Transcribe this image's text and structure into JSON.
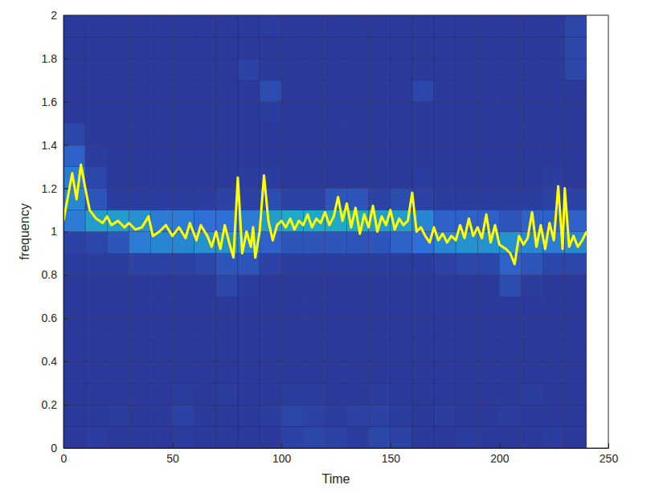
{
  "chart_data": {
    "type": "heatmap",
    "x_label": "Time",
    "y_label": "frequency",
    "xlim": [
      0,
      250
    ],
    "ylim": [
      0,
      2
    ],
    "xticks": [
      0,
      50,
      100,
      150,
      200,
      250
    ],
    "yticks": [
      0,
      0.2,
      0.4,
      0.6,
      0.8,
      1,
      1.2,
      1.4,
      1.6,
      1.8,
      2
    ],
    "grid": false,
    "heatmap": {
      "x_edges": [
        0,
        10,
        20,
        30,
        40,
        50,
        60,
        70,
        80,
        90,
        100,
        110,
        120,
        130,
        140,
        150,
        160,
        170,
        180,
        190,
        200,
        210,
        220,
        230,
        240
      ],
      "y_edges": [
        0,
        0.1,
        0.2,
        0.3,
        0.4,
        0.5,
        0.6,
        0.7,
        0.8,
        0.9,
        1,
        1.1,
        1.2,
        1.3,
        1.4,
        1.5,
        1.6,
        1.7,
        1.8,
        1.9,
        2
      ],
      "color_range": [
        0,
        1
      ],
      "values": [
        [
          0.05,
          0.06,
          0.05,
          0.05,
          0.05,
          0.06,
          0.05,
          0.05,
          0.05,
          0.05,
          0.08,
          0.1,
          0.08,
          0.06,
          0.1,
          0.08,
          0.05,
          0.05,
          0.06,
          0.05,
          0.05,
          0.05,
          0.06,
          0.05
        ],
        [
          0.05,
          0.05,
          0.06,
          0.05,
          0.05,
          0.08,
          0.05,
          0.05,
          0.05,
          0.06,
          0.1,
          0.08,
          0.06,
          0.08,
          0.08,
          0.06,
          0.05,
          0.06,
          0.05,
          0.05,
          0.06,
          0.05,
          0.05,
          0.05
        ],
        [
          0.05,
          0.05,
          0.05,
          0.05,
          0.05,
          0.06,
          0.05,
          0.06,
          0.05,
          0.05,
          0.06,
          0.06,
          0.05,
          0.05,
          0.06,
          0.05,
          0.05,
          0.05,
          0.05,
          0.05,
          0.05,
          0.06,
          0.05,
          0.05
        ],
        [
          0.05,
          0.05,
          0.05,
          0.05,
          0.05,
          0.05,
          0.05,
          0.05,
          0.05,
          0.05,
          0.05,
          0.05,
          0.05,
          0.05,
          0.05,
          0.05,
          0.05,
          0.05,
          0.05,
          0.05,
          0.05,
          0.05,
          0.05,
          0.05
        ],
        [
          0.05,
          0.05,
          0.05,
          0.05,
          0.05,
          0.05,
          0.05,
          0.05,
          0.05,
          0.05,
          0.05,
          0.05,
          0.05,
          0.05,
          0.05,
          0.05,
          0.05,
          0.05,
          0.05,
          0.05,
          0.05,
          0.05,
          0.05,
          0.05
        ],
        [
          0.05,
          0.05,
          0.05,
          0.05,
          0.05,
          0.05,
          0.05,
          0.05,
          0.05,
          0.05,
          0.05,
          0.05,
          0.05,
          0.05,
          0.05,
          0.05,
          0.05,
          0.05,
          0.05,
          0.05,
          0.05,
          0.05,
          0.05,
          0.05
        ],
        [
          0.05,
          0.05,
          0.05,
          0.05,
          0.05,
          0.05,
          0.05,
          0.05,
          0.05,
          0.05,
          0.05,
          0.05,
          0.05,
          0.05,
          0.05,
          0.05,
          0.05,
          0.05,
          0.05,
          0.05,
          0.05,
          0.05,
          0.05,
          0.05
        ],
        [
          0.05,
          0.05,
          0.05,
          0.05,
          0.05,
          0.05,
          0.05,
          0.1,
          0.06,
          0.05,
          0.05,
          0.05,
          0.05,
          0.05,
          0.05,
          0.05,
          0.05,
          0.05,
          0.05,
          0.05,
          0.12,
          0.06,
          0.05,
          0.05
        ],
        [
          0.06,
          0.06,
          0.06,
          0.08,
          0.08,
          0.08,
          0.1,
          0.15,
          0.15,
          0.08,
          0.06,
          0.06,
          0.06,
          0.06,
          0.06,
          0.06,
          0.06,
          0.08,
          0.1,
          0.1,
          0.2,
          0.15,
          0.1,
          0.1
        ],
        [
          0.08,
          0.1,
          0.15,
          0.3,
          0.35,
          0.35,
          0.4,
          0.4,
          0.35,
          0.2,
          0.15,
          0.15,
          0.15,
          0.15,
          0.15,
          0.2,
          0.25,
          0.35,
          0.4,
          0.4,
          0.4,
          0.35,
          0.3,
          0.35
        ],
        [
          0.3,
          0.45,
          0.45,
          0.4,
          0.3,
          0.3,
          0.25,
          0.25,
          0.3,
          0.45,
          0.5,
          0.5,
          0.5,
          0.5,
          0.45,
          0.45,
          0.35,
          0.2,
          0.2,
          0.2,
          0.15,
          0.2,
          0.2,
          0.2
        ],
        [
          0.35,
          0.15,
          0.06,
          0.06,
          0.06,
          0.06,
          0.06,
          0.08,
          0.08,
          0.12,
          0.08,
          0.08,
          0.15,
          0.15,
          0.08,
          0.12,
          0.08,
          0.06,
          0.06,
          0.06,
          0.06,
          0.06,
          0.08,
          0.08
        ],
        [
          0.3,
          0.1,
          0.05,
          0.05,
          0.05,
          0.05,
          0.05,
          0.05,
          0.06,
          0.06,
          0.05,
          0.05,
          0.05,
          0.05,
          0.05,
          0.05,
          0.06,
          0.05,
          0.05,
          0.05,
          0.05,
          0.05,
          0.06,
          0.05
        ],
        [
          0.2,
          0.06,
          0.05,
          0.05,
          0.05,
          0.05,
          0.05,
          0.05,
          0.05,
          0.05,
          0.05,
          0.05,
          0.05,
          0.05,
          0.05,
          0.05,
          0.05,
          0.05,
          0.05,
          0.05,
          0.05,
          0.05,
          0.05,
          0.05
        ],
        [
          0.1,
          0.05,
          0.05,
          0.05,
          0.05,
          0.05,
          0.05,
          0.05,
          0.05,
          0.05,
          0.05,
          0.05,
          0.05,
          0.05,
          0.05,
          0.05,
          0.05,
          0.05,
          0.05,
          0.05,
          0.05,
          0.05,
          0.05,
          0.05
        ],
        [
          0.05,
          0.05,
          0.05,
          0.05,
          0.05,
          0.05,
          0.05,
          0.05,
          0.05,
          0.06,
          0.05,
          0.05,
          0.05,
          0.05,
          0.05,
          0.05,
          0.05,
          0.05,
          0.05,
          0.05,
          0.05,
          0.05,
          0.05,
          0.05
        ],
        [
          0.05,
          0.05,
          0.05,
          0.05,
          0.05,
          0.05,
          0.05,
          0.05,
          0.05,
          0.12,
          0.05,
          0.05,
          0.05,
          0.05,
          0.05,
          0.05,
          0.1,
          0.05,
          0.05,
          0.05,
          0.05,
          0.05,
          0.05,
          0.05
        ],
        [
          0.05,
          0.05,
          0.05,
          0.05,
          0.05,
          0.05,
          0.05,
          0.05,
          0.08,
          0.05,
          0.05,
          0.05,
          0.05,
          0.05,
          0.05,
          0.05,
          0.05,
          0.05,
          0.05,
          0.05,
          0.05,
          0.05,
          0.05,
          0.1
        ],
        [
          0.05,
          0.05,
          0.05,
          0.05,
          0.05,
          0.05,
          0.05,
          0.05,
          0.05,
          0.05,
          0.05,
          0.05,
          0.05,
          0.05,
          0.05,
          0.05,
          0.05,
          0.05,
          0.05,
          0.05,
          0.05,
          0.05,
          0.05,
          0.1
        ],
        [
          0.05,
          0.05,
          0.05,
          0.05,
          0.05,
          0.05,
          0.05,
          0.05,
          0.05,
          0.06,
          0.05,
          0.05,
          0.05,
          0.05,
          0.05,
          0.05,
          0.05,
          0.05,
          0.05,
          0.05,
          0.05,
          0.05,
          0.05,
          0.1
        ]
      ]
    },
    "series": [
      {
        "type": "line",
        "color": "#ffff00",
        "x": [
          0,
          4,
          6,
          8,
          10,
          12,
          15,
          18,
          20,
          22,
          25,
          28,
          30,
          33,
          36,
          39,
          41,
          44,
          47,
          50,
          53,
          56,
          58,
          61,
          63,
          66,
          68,
          70,
          72,
          74,
          76,
          78,
          80,
          82,
          84,
          86,
          87,
          88,
          90,
          92,
          94,
          96,
          98,
          100,
          102,
          104,
          106,
          108,
          110,
          112,
          114,
          116,
          118,
          120,
          122,
          124,
          126,
          128,
          130,
          132,
          134,
          136,
          138,
          140,
          142,
          144,
          146,
          148,
          150,
          152,
          154,
          156,
          158,
          160,
          162,
          164,
          166,
          168,
          170,
          172,
          174,
          176,
          178,
          180,
          182,
          184,
          186,
          188,
          190,
          192,
          194,
          196,
          198,
          200,
          203,
          205,
          207,
          209,
          211,
          213,
          215,
          217,
          219,
          221,
          223,
          225,
          227,
          229,
          230,
          232,
          234,
          236,
          238,
          240
        ],
        "values": [
          1.05,
          1.27,
          1.15,
          1.31,
          1.2,
          1.1,
          1.06,
          1.04,
          1.07,
          1.03,
          1.05,
          1.02,
          1.04,
          1.01,
          1.02,
          1.07,
          0.98,
          1.0,
          1.03,
          0.98,
          1.02,
          0.97,
          1.04,
          0.96,
          1.03,
          0.98,
          0.93,
          1.0,
          0.92,
          1.03,
          0.95,
          0.88,
          1.25,
          0.9,
          1.0,
          0.93,
          1.02,
          0.88,
          1.0,
          1.26,
          1.05,
          0.96,
          1.03,
          1.05,
          1.02,
          1.06,
          1.01,
          1.05,
          1.03,
          1.08,
          1.02,
          1.06,
          1.04,
          1.09,
          1.03,
          1.07,
          1.16,
          1.05,
          1.13,
          1.02,
          1.11,
          0.99,
          1.08,
          1.02,
          1.12,
          1.0,
          1.07,
          1.03,
          1.1,
          1.01,
          1.06,
          1.03,
          1.05,
          1.18,
          1.0,
          1.02,
          0.98,
          0.95,
          1.02,
          0.96,
          0.99,
          0.95,
          0.98,
          0.96,
          1.03,
          0.97,
          1.06,
          0.98,
          1.02,
          0.97,
          1.08,
          0.95,
          1.03,
          0.94,
          0.92,
          0.9,
          0.85,
          0.98,
          0.94,
          0.97,
          1.09,
          0.93,
          1.03,
          0.92,
          1.04,
          0.96,
          1.21,
          0.92,
          1.2,
          0.93,
          0.98,
          0.93,
          0.96,
          1.0
        ]
      }
    ]
  }
}
